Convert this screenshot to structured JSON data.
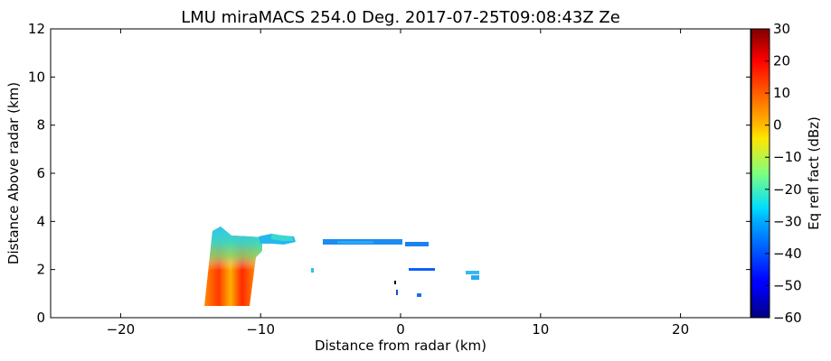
{
  "chart_data": {
    "type": "heatmap",
    "title": "LMU miraMACS 254.0 Deg. 2017-07-25T09:08:43Z  Ze",
    "xlabel": "Distance from radar (km)",
    "ylabel": "Distance Above radar  (km)",
    "xlim": [
      -25,
      25
    ],
    "ylim": [
      0,
      12
    ],
    "x_ticks": [
      -20,
      -10,
      0,
      10,
      20
    ],
    "x_tick_labels": [
      "−20",
      "−10",
      "0",
      "10",
      "20"
    ],
    "y_ticks": [
      0,
      2,
      4,
      6,
      8,
      10,
      12
    ],
    "y_tick_labels": [
      "0",
      "2",
      "4",
      "6",
      "8",
      "10",
      "12"
    ],
    "grid": false,
    "colorbar": {
      "label": "Eq refl fact (dBz)",
      "range": [
        -60,
        30
      ],
      "ticks": [
        30,
        20,
        10,
        0,
        -10,
        -20,
        -30,
        -40,
        -50,
        -60
      ],
      "tick_labels": [
        "30",
        "20",
        "10",
        "0",
        "−10",
        "−20",
        "−30",
        "−40",
        "−50",
        "−60"
      ],
      "colormap": "jet"
    },
    "echoes": [
      {
        "x": [
          -14.0,
          -10.0
        ],
        "y": [
          0.5,
          3.6
        ],
        "dbz": "-35 to 15"
      },
      {
        "x": [
          -10.0,
          -7.5
        ],
        "y": [
          3.0,
          3.5
        ],
        "dbz": "-35 to -25"
      },
      {
        "x": [
          -6.0,
          0.0
        ],
        "y": [
          2.95,
          3.2
        ],
        "dbz": "-40 to -35"
      },
      {
        "x": [
          0.5,
          2.0
        ],
        "y": [
          2.95,
          3.05
        ],
        "dbz": "-40"
      },
      {
        "x": [
          0.8,
          2.5
        ],
        "y": [
          1.9,
          2.0
        ],
        "dbz": "-42"
      },
      {
        "x": [
          4.8,
          5.7
        ],
        "y": [
          1.5,
          1.8
        ],
        "dbz": "-30"
      },
      {
        "x": [
          -6.3,
          -6.1
        ],
        "y": [
          1.8,
          1.9
        ],
        "dbz": "-30"
      },
      {
        "x": [
          1.3,
          1.5
        ],
        "y": [
          0.8,
          0.9
        ],
        "dbz": "-40"
      }
    ]
  }
}
